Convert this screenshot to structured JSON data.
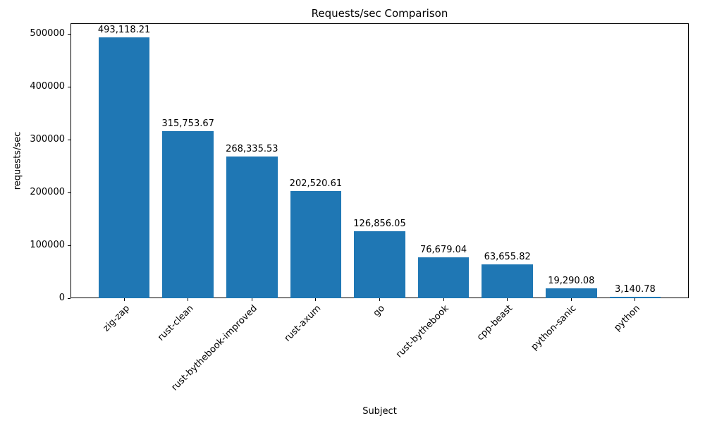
{
  "chart_data": {
    "type": "bar",
    "title": "Requests/sec Comparison",
    "xlabel": "Subject",
    "ylabel": "requests/sec",
    "categories": [
      "zig-zap",
      "rust-clean",
      "rust-bythebook-improved",
      "rust-axum",
      "go",
      "rust-bythebook",
      "cpp-beast",
      "python-sanic",
      "python"
    ],
    "values": [
      493118.21,
      315753.67,
      268335.53,
      202520.61,
      126856.05,
      76679.04,
      63655.82,
      19290.08,
      3140.78
    ],
    "value_labels": [
      "493,118.21",
      "315,753.67",
      "268,335.53",
      "202,520.61",
      "126,856.05",
      "76,679.04",
      "63,655.82",
      "19,290.08",
      "3,140.78"
    ],
    "yticks": [
      0,
      100000,
      200000,
      300000,
      400000,
      500000
    ],
    "ytick_labels": [
      "0",
      "100000",
      "200000",
      "300000",
      "400000",
      "500000"
    ],
    "ylim": [
      0,
      520000
    ],
    "bar_color": "#1f77b4",
    "bar_width_fraction": 0.8,
    "grid": false,
    "legend": "none"
  }
}
